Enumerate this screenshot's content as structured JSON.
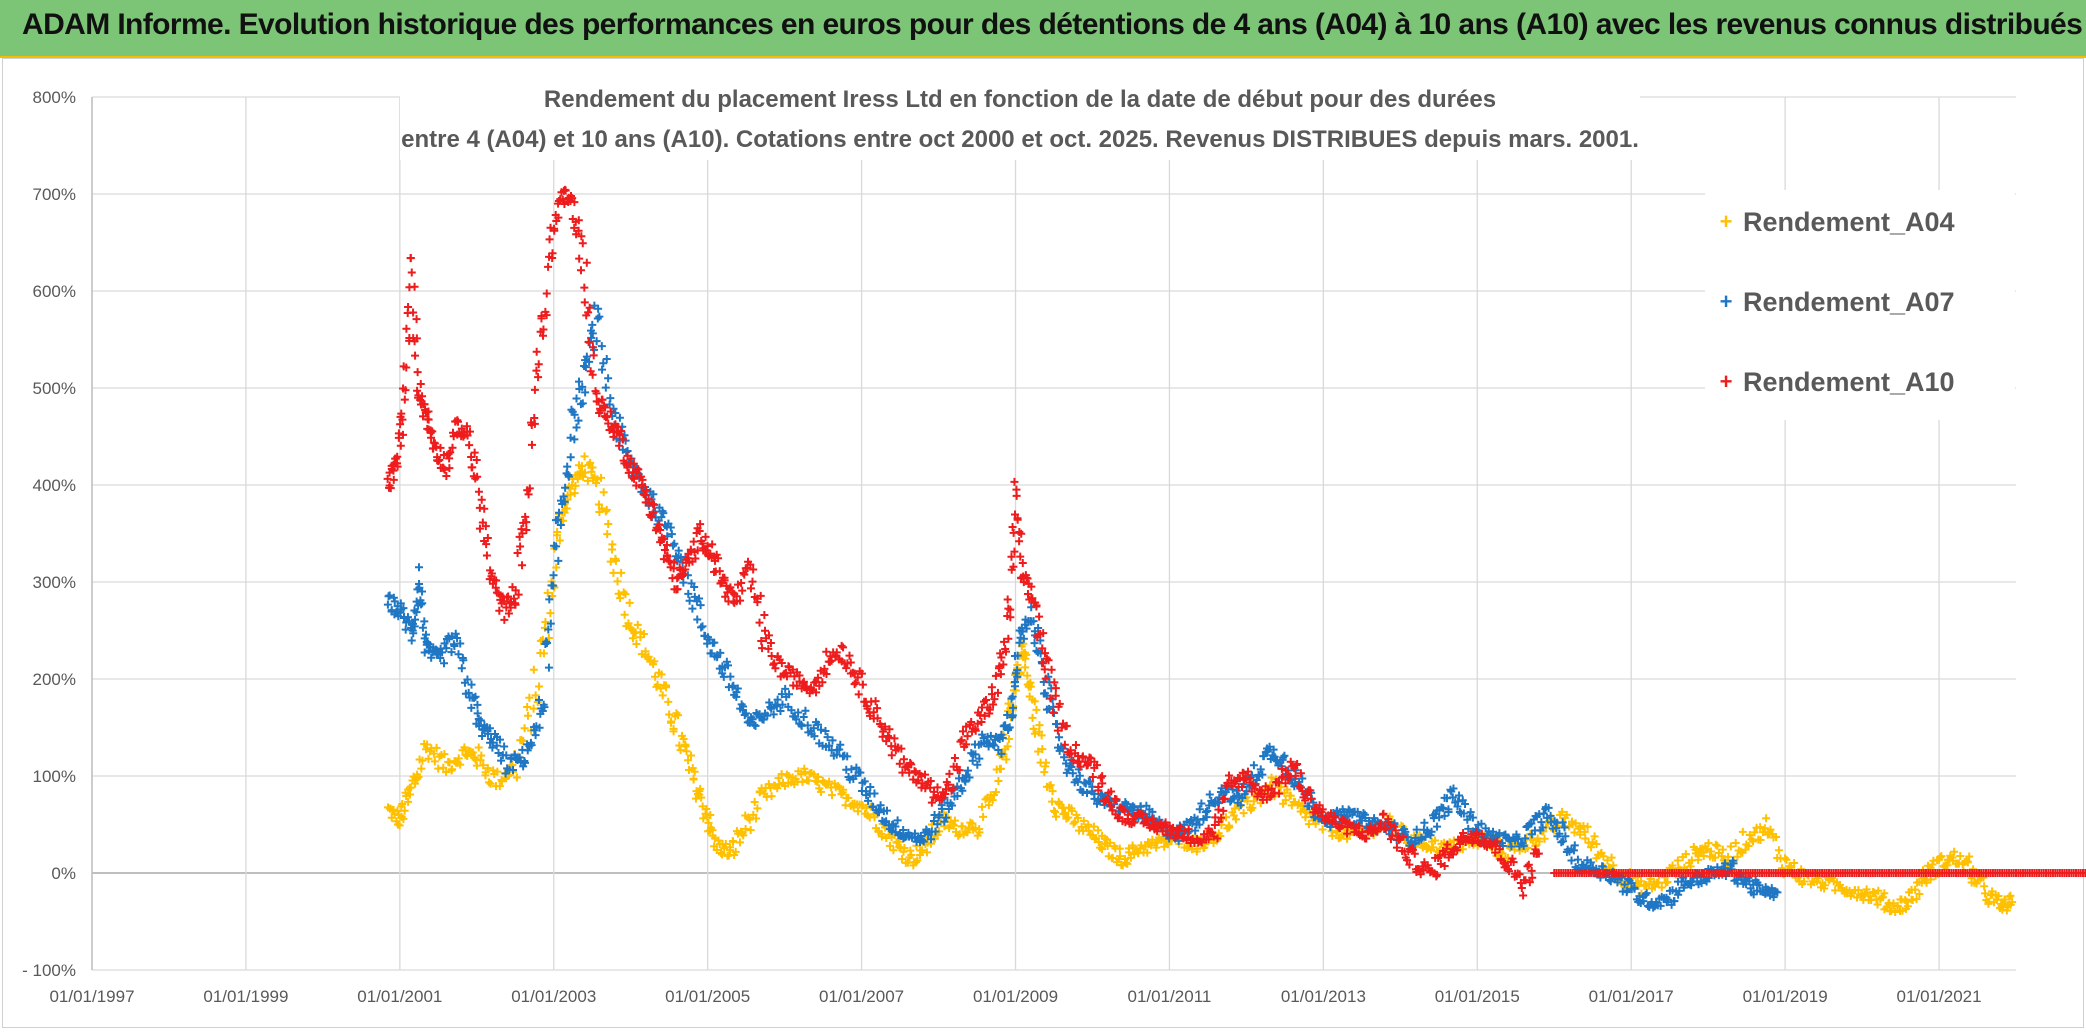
{
  "header": {
    "title": "ADAM Informe. Evolution historique des performances en euros pour des détentions de 4 ans (A04) à 10 ans (A10) avec les revenus connus distribués"
  },
  "chart_data": {
    "type": "scatter",
    "title_line1": "Rendement du placement Iress Ltd en fonction de la date de début pour des durées",
    "title_line2": "entre 4 (A04) et 10 ans (A10). Cotations entre oct 2000 et oct. 2025. Revenus DISTRIBUES depuis mars. 2001.",
    "xlabel": "",
    "ylabel": "",
    "xlim": [
      1997.0,
      2022.0
    ],
    "ylim": [
      -100,
      800
    ],
    "y_ticks": [
      -100,
      0,
      100,
      200,
      300,
      400,
      500,
      600,
      700,
      800
    ],
    "y_tick_labels": [
      "- 100%",
      "0%",
      "100%",
      "200%",
      "300%",
      "400%",
      "500%",
      "600%",
      "700%",
      "800%"
    ],
    "x_ticks": [
      1997,
      1999,
      2001,
      2003,
      2005,
      2007,
      2009,
      2011,
      2013,
      2015,
      2017,
      2019,
      2021
    ],
    "x_tick_labels": [
      "01/01/1997",
      "01/01/1999",
      "01/01/2001",
      "01/01/2003",
      "01/01/2005",
      "01/01/2007",
      "01/01/2009",
      "01/01/2011",
      "01/01/2013",
      "01/01/2015",
      "01/01/2017",
      "01/01/2019",
      "01/01/2021"
    ],
    "grid": true,
    "legend_position": "top-right",
    "marker": "+",
    "series": [
      {
        "name": "Rendement_A04",
        "color": "#ffc000",
        "x": [
          2000.85,
          2001.0,
          2001.15,
          2001.35,
          2001.6,
          2001.85,
          2002.0,
          2002.25,
          2002.5,
          2002.75,
          2002.95,
          2003.1,
          2003.25,
          2003.4,
          2003.6,
          2003.8,
          2004.0,
          2004.2,
          2004.4,
          2004.6,
          2004.8,
          2004.95,
          2005.1,
          2005.3,
          2005.5,
          2005.75,
          2006.0,
          2006.25,
          2006.5,
          2006.75,
          2007.0,
          2007.25,
          2007.45,
          2007.65,
          2007.85,
          2008.05,
          2008.25,
          2008.5,
          2008.75,
          2008.9,
          2009.0,
          2009.1,
          2009.2,
          2009.35,
          2009.55,
          2009.75,
          2010.0,
          2010.2,
          2010.4,
          2010.6,
          2010.85,
          2011.1,
          2011.35,
          2011.6,
          2011.85,
          2012.1,
          2012.35,
          2012.6,
          2012.85,
          2013.1,
          2013.35,
          2013.6,
          2013.85,
          2014.1,
          2014.35,
          2014.6,
          2014.85,
          2015.1,
          2015.35,
          2015.6,
          2015.85,
          2016.1,
          2016.35,
          2016.6,
          2016.85,
          2017.1,
          2017.35,
          2017.6,
          2017.85,
          2018.0,
          2018.25,
          2018.5,
          2018.75,
          2019.0,
          2019.25,
          2019.5,
          2019.75,
          2020.0,
          2020.2,
          2020.4,
          2020.6,
          2020.8,
          2021.0,
          2021.2,
          2021.4,
          2021.6,
          2021.8,
          2021.95
        ],
        "y": [
          65,
          55,
          85,
          130,
          110,
          125,
          120,
          95,
          110,
          180,
          280,
          370,
          400,
          420,
          390,
          320,
          260,
          230,
          190,
          150,
          100,
          70,
          30,
          20,
          50,
          80,
          95,
          100,
          90,
          80,
          70,
          50,
          30,
          15,
          30,
          55,
          45,
          50,
          80,
          150,
          200,
          230,
          180,
          120,
          70,
          55,
          40,
          25,
          15,
          25,
          30,
          35,
          30,
          40,
          60,
          75,
          90,
          70,
          55,
          45,
          40,
          45,
          50,
          35,
          30,
          25,
          30,
          35,
          20,
          30,
          40,
          55,
          45,
          20,
          0,
          -15,
          -10,
          5,
          20,
          25,
          15,
          35,
          45,
          10,
          -5,
          -10,
          -15,
          -20,
          -25,
          -35,
          -30,
          -5,
          10,
          15,
          5,
          -20,
          -35,
          -30
        ]
      },
      {
        "name": "Rendement_A07",
        "color": "#1f77c4",
        "x": [
          2000.85,
          2001.0,
          2001.15,
          2001.25,
          2001.35,
          2001.5,
          2001.7,
          2001.9,
          2002.05,
          2002.2,
          2002.4,
          2002.6,
          2002.8,
          2002.95,
          2003.1,
          2003.25,
          2003.4,
          2003.55,
          2003.75,
          2003.95,
          2004.15,
          2004.35,
          2004.55,
          2004.75,
          2004.95,
          2005.15,
          2005.35,
          2005.55,
          2005.75,
          2006.0,
          2006.25,
          2006.5,
          2006.75,
          2007.0,
          2007.2,
          2007.4,
          2007.6,
          2007.8,
          2008.0,
          2008.2,
          2008.4,
          2008.6,
          2008.8,
          2008.95,
          2009.05,
          2009.2,
          2009.35,
          2009.5,
          2009.7,
          2009.9,
          2010.1,
          2010.3,
          2010.5,
          2010.7,
          2010.9,
          2011.1,
          2011.3,
          2011.5,
          2011.7,
          2011.9,
          2012.1,
          2012.3,
          2012.5,
          2012.7,
          2012.9,
          2013.1,
          2013.3,
          2013.5,
          2013.7,
          2013.9,
          2014.1,
          2014.3,
          2014.5,
          2014.7,
          2014.9,
          2015.1,
          2015.3,
          2015.5,
          2015.7,
          2015.9,
          2016.1,
          2016.3,
          2016.5,
          2016.7,
          2016.9,
          2017.1,
          2017.3,
          2017.5,
          2017.7,
          2017.9,
          2018.1,
          2018.3,
          2018.5,
          2018.7,
          2018.9
        ],
        "y": [
          280,
          270,
          250,
          300,
          230,
          220,
          240,
          190,
          150,
          140,
          110,
          120,
          150,
          250,
          380,
          460,
          510,
          570,
          480,
          430,
          400,
          370,
          350,
          300,
          250,
          220,
          190,
          150,
          165,
          180,
          160,
          140,
          120,
          90,
          70,
          50,
          40,
          35,
          55,
          80,
          110,
          140,
          130,
          170,
          240,
          260,
          220,
          150,
          110,
          90,
          75,
          70,
          65,
          60,
          45,
          40,
          50,
          70,
          85,
          75,
          100,
          125,
          115,
          90,
          65,
          55,
          60,
          55,
          50,
          45,
          35,
          40,
          60,
          80,
          55,
          40,
          35,
          30,
          45,
          60,
          40,
          10,
          5,
          0,
          -10,
          -25,
          -30,
          -25,
          -10,
          -5,
          0,
          5,
          -10,
          -20,
          -20
        ]
      },
      {
        "name": "Rendement_A10",
        "color": "#ee1c1c",
        "x": [
          2000.85,
          2000.95,
          2001.05,
          2001.15,
          2001.25,
          2001.35,
          2001.45,
          2001.6,
          2001.75,
          2001.9,
          2002.05,
          2002.2,
          2002.35,
          2002.5,
          2002.65,
          2002.8,
          2002.95,
          2003.1,
          2003.25,
          2003.4,
          2003.55,
          2003.7,
          2003.85,
          2004.0,
          2004.15,
          2004.3,
          2004.45,
          2004.6,
          2004.75,
          2004.9,
          2005.05,
          2005.2,
          2005.35,
          2005.55,
          2005.75,
          2005.95,
          2006.15,
          2006.35,
          2006.55,
          2006.75,
          2006.95,
          2007.15,
          2007.35,
          2007.55,
          2007.75,
          2007.95,
          2008.15,
          2008.35,
          2008.55,
          2008.75,
          2008.9,
          2009.0,
          2009.1,
          2009.25,
          2009.4,
          2009.6,
          2009.8,
          2010.0,
          2010.2,
          2010.4,
          2010.6,
          2010.8,
          2011.0,
          2011.2,
          2011.4,
          2011.6,
          2011.8,
          2012.0,
          2012.2,
          2012.4,
          2012.6,
          2012.8,
          2013.0,
          2013.2,
          2013.4,
          2013.6,
          2013.8,
          2014.0,
          2014.2,
          2014.4,
          2014.6,
          2014.8,
          2015.0,
          2015.2,
          2015.4,
          2015.6,
          2015.8
        ],
        "y": [
          400,
          420,
          480,
          610,
          500,
          470,
          440,
          420,
          460,
          450,
          380,
          300,
          270,
          290,
          380,
          520,
          640,
          700,
          690,
          620,
          490,
          470,
          450,
          420,
          400,
          370,
          330,
          300,
          320,
          350,
          330,
          300,
          280,
          310,
          240,
          210,
          200,
          190,
          220,
          230,
          200,
          170,
          140,
          110,
          100,
          80,
          90,
          140,
          160,
          190,
          250,
          380,
          300,
          280,
          210,
          150,
          120,
          110,
          80,
          60,
          55,
          50,
          45,
          40,
          35,
          45,
          90,
          100,
          80,
          90,
          110,
          80,
          60,
          50,
          45,
          40,
          55,
          30,
          10,
          0,
          20,
          35,
          40,
          30,
          10,
          -10,
          20
        ]
      }
    ],
    "flat_series_A10_tail": {
      "x_start": 2016.0,
      "x_end": 2022.95,
      "y": 0
    }
  },
  "legend": {
    "items": [
      {
        "label": "Rendement_A04",
        "color": "#ffc000"
      },
      {
        "label": "Rendement_A07",
        "color": "#1f77c4"
      },
      {
        "label": "Rendement_A10",
        "color": "#ee1c1c"
      }
    ]
  }
}
